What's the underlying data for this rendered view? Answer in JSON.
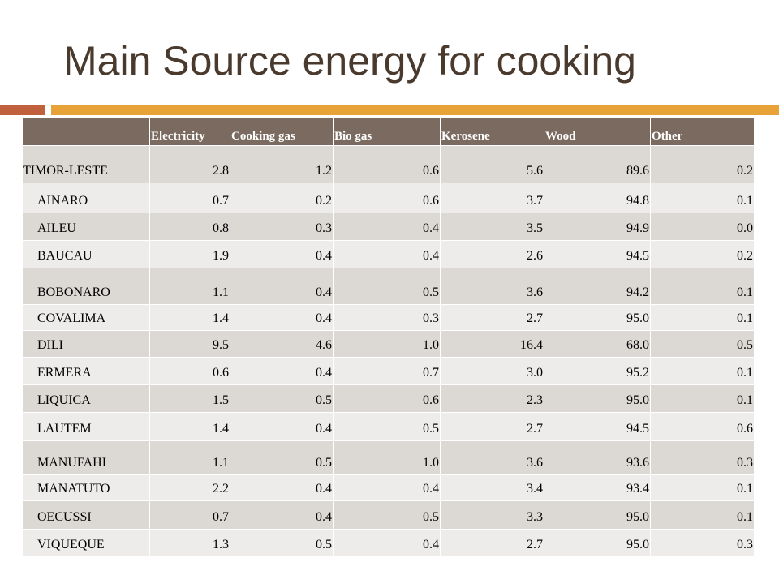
{
  "slide": {
    "title": "Main Source energy for cooking"
  },
  "colors": {
    "title_text": "#4a3a2e",
    "accent_left": "#c1603c",
    "accent_right": "#e7a338",
    "header_bg": "#7a6a5f",
    "row_dark": "#dcd8d4",
    "row_light": "#eeecea"
  },
  "table": {
    "headers": [
      "",
      "Electricity",
      "Cooking gas",
      "Bio gas",
      "Kerosene",
      "Wood",
      "Other"
    ],
    "rows": [
      {
        "name": "TIMOR-LESTE",
        "values": [
          "2.8",
          "1.2",
          "0.6",
          "5.6",
          "89.6",
          "0.2"
        ]
      },
      {
        "name": "AINARO",
        "values": [
          "0.7",
          "0.2",
          "0.6",
          "3.7",
          "94.8",
          "0.1"
        ]
      },
      {
        "name": "AILEU",
        "values": [
          "0.8",
          "0.3",
          "0.4",
          "3.5",
          "94.9",
          "0.0"
        ]
      },
      {
        "name": "BAUCAU",
        "values": [
          "1.9",
          "0.4",
          "0.4",
          "2.6",
          "94.5",
          "0.2"
        ]
      },
      {
        "name": "BOBONARO",
        "values": [
          "1.1",
          "0.4",
          "0.5",
          "3.6",
          "94.2",
          "0.1"
        ]
      },
      {
        "name": "COVALIMA",
        "values": [
          "1.4",
          "0.4",
          "0.3",
          "2.7",
          "95.0",
          "0.1"
        ]
      },
      {
        "name": "DILI",
        "values": [
          "9.5",
          "4.6",
          "1.0",
          "16.4",
          "68.0",
          "0.5"
        ]
      },
      {
        "name": "ERMERA",
        "values": [
          "0.6",
          "0.4",
          "0.7",
          "3.0",
          "95.2",
          "0.1"
        ]
      },
      {
        "name": "LIQUICA",
        "values": [
          "1.5",
          "0.5",
          "0.6",
          "2.3",
          "95.0",
          "0.1"
        ]
      },
      {
        "name": "LAUTEM",
        "values": [
          "1.4",
          "0.4",
          "0.5",
          "2.7",
          "94.5",
          "0.6"
        ]
      },
      {
        "name": "MANUFAHI",
        "values": [
          "1.1",
          "0.5",
          "1.0",
          "3.6",
          "93.6",
          "0.3"
        ]
      },
      {
        "name": "MANATUTO",
        "values": [
          "2.2",
          "0.4",
          "0.4",
          "3.4",
          "93.4",
          "0.1"
        ]
      },
      {
        "name": "OECUSSI",
        "values": [
          "0.7",
          "0.4",
          "0.5",
          "3.3",
          "95.0",
          "0.1"
        ]
      },
      {
        "name": "VIQUEQUE",
        "values": [
          "1.3",
          "0.5",
          "0.4",
          "2.7",
          "95.0",
          "0.3"
        ]
      }
    ]
  }
}
